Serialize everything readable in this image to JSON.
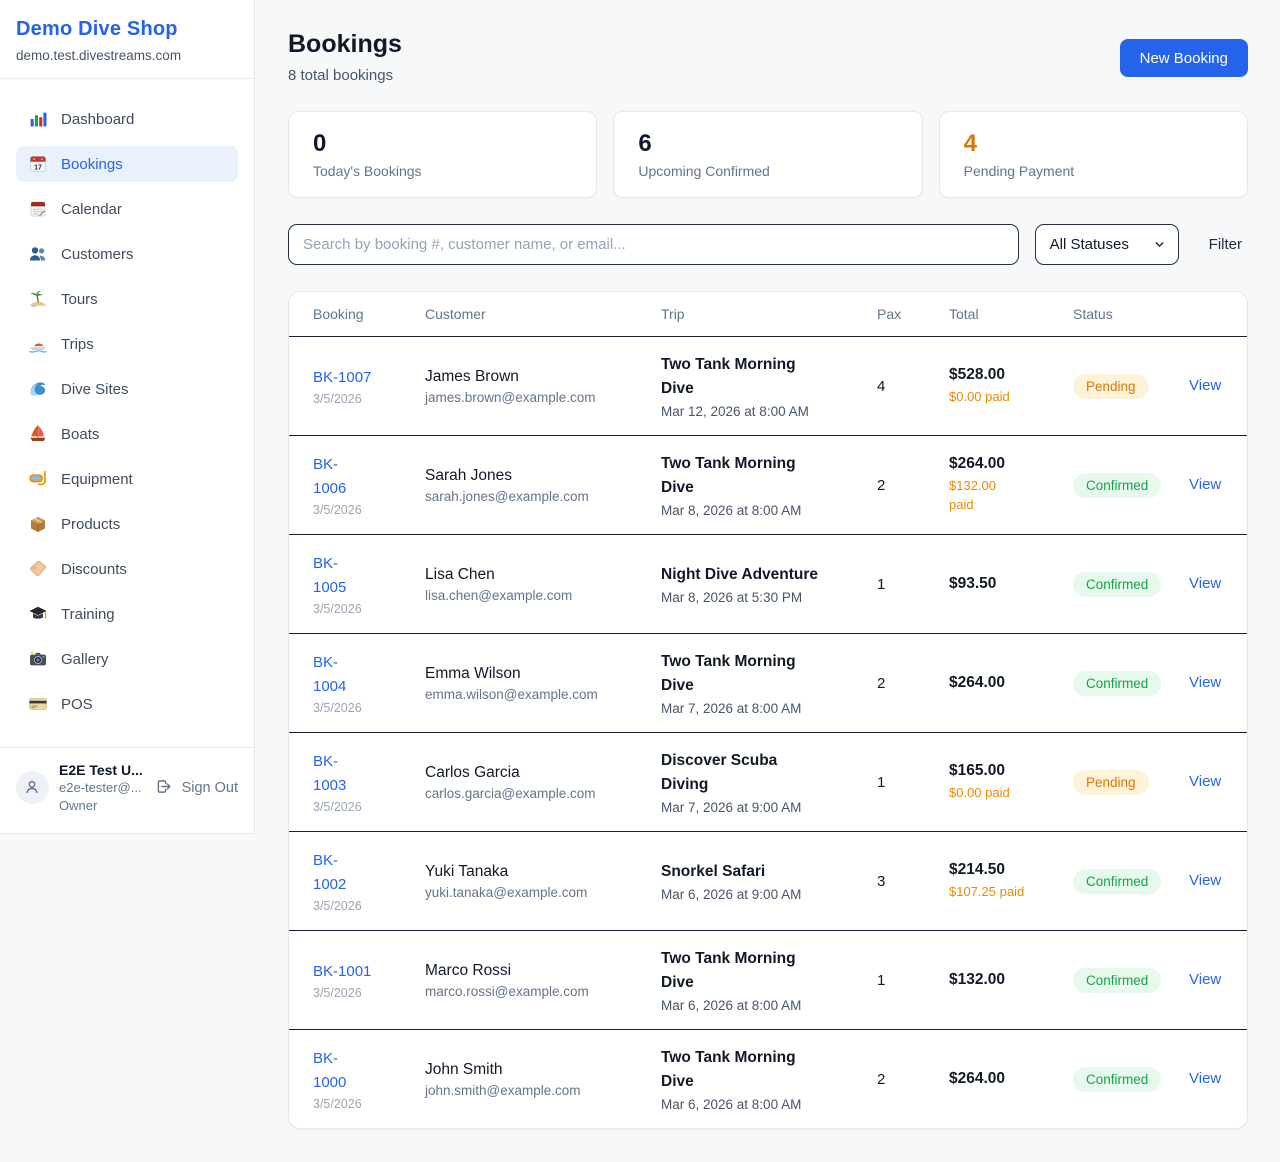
{
  "sidebar": {
    "title": "Demo Dive Shop",
    "subdomain": "demo.test.divestreams.com",
    "items": [
      {
        "label": "Dashboard",
        "icon": "bar-chart",
        "active": false
      },
      {
        "label": "Bookings",
        "icon": "calendar-date",
        "active": true
      },
      {
        "label": "Calendar",
        "icon": "calendar",
        "active": false
      },
      {
        "label": "Customers",
        "icon": "users",
        "active": false
      },
      {
        "label": "Tours",
        "icon": "island",
        "active": false
      },
      {
        "label": "Trips",
        "icon": "speedboat",
        "active": false
      },
      {
        "label": "Dive Sites",
        "icon": "wave",
        "active": false
      },
      {
        "label": "Boats",
        "icon": "sailboat",
        "active": false
      },
      {
        "label": "Equipment",
        "icon": "diving-mask",
        "active": false
      },
      {
        "label": "Products",
        "icon": "package",
        "active": false
      },
      {
        "label": "Discounts",
        "icon": "tag",
        "active": false
      },
      {
        "label": "Training",
        "icon": "graduation-cap",
        "active": false
      },
      {
        "label": "Gallery",
        "icon": "camera",
        "active": false
      },
      {
        "label": "POS",
        "icon": "credit-card",
        "active": false
      }
    ],
    "user": {
      "name": "E2E Test U...",
      "email": "e2e-tester@...",
      "role": "Owner",
      "signout_label": "Sign Out"
    }
  },
  "header": {
    "title": "Bookings",
    "subtitle": "8 total bookings",
    "new_booking_label": "New Booking"
  },
  "stats": [
    {
      "value": "0",
      "label": "Today's Bookings",
      "color": "#0f172a"
    },
    {
      "value": "6",
      "label": "Upcoming Confirmed",
      "color": "#0f172a"
    },
    {
      "value": "4",
      "label": "Pending Payment",
      "color": "#d97706"
    }
  ],
  "filters": {
    "search_placeholder": "Search by booking #, customer name, or email...",
    "status_value": "All Statuses",
    "filter_label": "Filter"
  },
  "table": {
    "columns": [
      "Booking",
      "Customer",
      "Trip",
      "Pax",
      "Total",
      "Status"
    ],
    "rows": [
      {
        "id": "BK-1007",
        "date": "3/5/2026",
        "customer": "James Brown",
        "email": "james.brown@example.com",
        "trip": "Two Tank Morning\nDive",
        "trip_datetime": "Mar 12, 2026 at 8:00 AM",
        "pax": "4",
        "total": "$528.00",
        "paid": "$0.00 paid",
        "status": "Pending",
        "view_label": "View"
      },
      {
        "id": "BK-\n1006",
        "date": "3/5/2026",
        "customer": "Sarah Jones",
        "email": "sarah.jones@example.com",
        "trip": "Two Tank Morning\nDive",
        "trip_datetime": "Mar 8, 2026 at 8:00 AM",
        "pax": "2",
        "total": "$264.00",
        "paid": "$132.00\npaid",
        "status": "Confirmed",
        "view_label": "View"
      },
      {
        "id": "BK-\n1005",
        "date": "3/5/2026",
        "customer": "Lisa Chen",
        "email": "lisa.chen@example.com",
        "trip": "Night Dive Adventure",
        "trip_datetime": "Mar 8, 2026 at 5:30 PM",
        "pax": "1",
        "total": "$93.50",
        "paid": null,
        "status": "Confirmed",
        "view_label": "View"
      },
      {
        "id": "BK-\n1004",
        "date": "3/5/2026",
        "customer": "Emma Wilson",
        "email": "emma.wilson@example.com",
        "trip": "Two Tank Morning\nDive",
        "trip_datetime": "Mar 7, 2026 at 8:00 AM",
        "pax": "2",
        "total": "$264.00",
        "paid": null,
        "status": "Confirmed",
        "view_label": "View"
      },
      {
        "id": "BK-\n1003",
        "date": "3/5/2026",
        "customer": "Carlos Garcia",
        "email": "carlos.garcia@example.com",
        "trip": "Discover Scuba\nDiving",
        "trip_datetime": "Mar 7, 2026 at 9:00 AM",
        "pax": "1",
        "total": "$165.00",
        "paid": "$0.00 paid",
        "status": "Pending",
        "view_label": "View"
      },
      {
        "id": "BK-\n1002",
        "date": "3/5/2026",
        "customer": "Yuki Tanaka",
        "email": "yuki.tanaka@example.com",
        "trip": "Snorkel Safari",
        "trip_datetime": "Mar 6, 2026 at 9:00 AM",
        "pax": "3",
        "total": "$214.50",
        "paid": "$107.25 paid",
        "status": "Confirmed",
        "view_label": "View"
      },
      {
        "id": "BK-1001",
        "date": "3/5/2026",
        "customer": "Marco Rossi",
        "email": "marco.rossi@example.com",
        "trip": "Two Tank Morning\nDive",
        "trip_datetime": "Mar 6, 2026 at 8:00 AM",
        "pax": "1",
        "total": "$132.00",
        "paid": null,
        "status": "Confirmed",
        "view_label": "View"
      },
      {
        "id": "BK-\n1000",
        "date": "3/5/2026",
        "customer": "John Smith",
        "email": "john.smith@example.com",
        "trip": "Two Tank Morning\nDive",
        "trip_datetime": "Mar 6, 2026 at 8:00 AM",
        "pax": "2",
        "total": "$264.00",
        "paid": null,
        "status": "Confirmed",
        "view_label": "View"
      }
    ]
  },
  "colors": {
    "accent_blue": "#2563eb",
    "pending_text": "#d97706",
    "pending_bg": "#fdf3d9",
    "confirmed_text": "#16a34a",
    "confirmed_bg": "#e7f8ec",
    "paid_orange": "#ec8a00"
  }
}
